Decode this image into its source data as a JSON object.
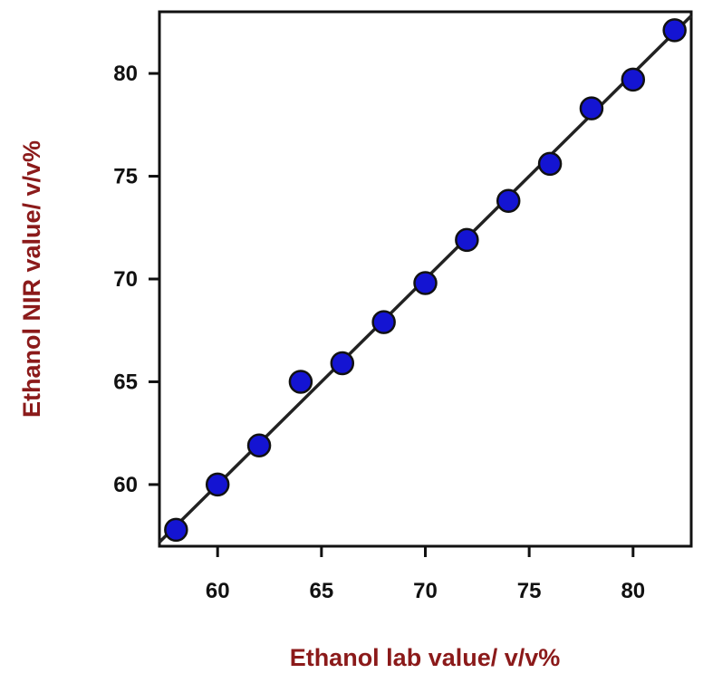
{
  "chart_data": {
    "type": "scatter",
    "xlabel": "Ethanol lab value/ v/v%",
    "ylabel": "Ethanol NIR value/ v/v%",
    "xlim": [
      57.2,
      82.8
    ],
    "ylim": [
      57.0,
      83.0
    ],
    "x_ticks": [
      60,
      65,
      70,
      75,
      80
    ],
    "y_ticks": [
      60,
      65,
      70,
      75,
      80
    ],
    "grid": false,
    "series": [
      {
        "points": [
          {
            "x": 58,
            "y": 57.8
          },
          {
            "x": 60,
            "y": 60.0
          },
          {
            "x": 62,
            "y": 61.9
          },
          {
            "x": 64,
            "y": 65.0
          },
          {
            "x": 66,
            "y": 65.9
          },
          {
            "x": 68,
            "y": 67.9
          },
          {
            "x": 70,
            "y": 69.8
          },
          {
            "x": 72,
            "y": 71.9
          },
          {
            "x": 74,
            "y": 73.8
          },
          {
            "x": 76,
            "y": 75.6
          },
          {
            "x": 78,
            "y": 78.3
          },
          {
            "x": 80,
            "y": 79.7
          },
          {
            "x": 82,
            "y": 82.1
          }
        ]
      }
    ],
    "fit_line": {
      "x": [
        57.2,
        82.8
      ],
      "y": [
        57.2,
        82.8
      ]
    },
    "colors": {
      "marker_fill": "#1414d2",
      "marker_stroke": "#111111",
      "fit_line": "#222222",
      "axis": "#111111",
      "axis_title": "#8b1a1a"
    }
  }
}
